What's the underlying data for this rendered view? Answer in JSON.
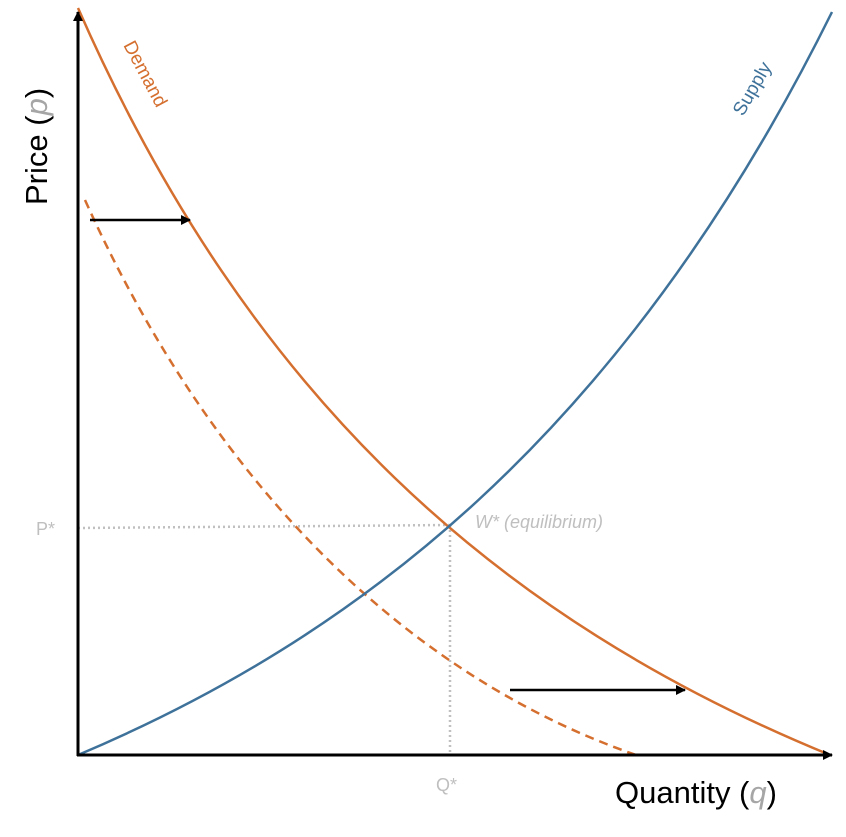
{
  "y_axis_label": {
    "before": "Price (",
    "symbol": "p",
    "after": ")"
  },
  "x_axis_label": {
    "before": "Quantity (",
    "symbol": "q",
    "after": ")"
  },
  "curves": {
    "demand": "Demand",
    "supply": "Supply"
  },
  "equilibrium": {
    "label": "W* (equilibrium)",
    "price_label": "P*",
    "quantity_label": "Q*"
  }
}
